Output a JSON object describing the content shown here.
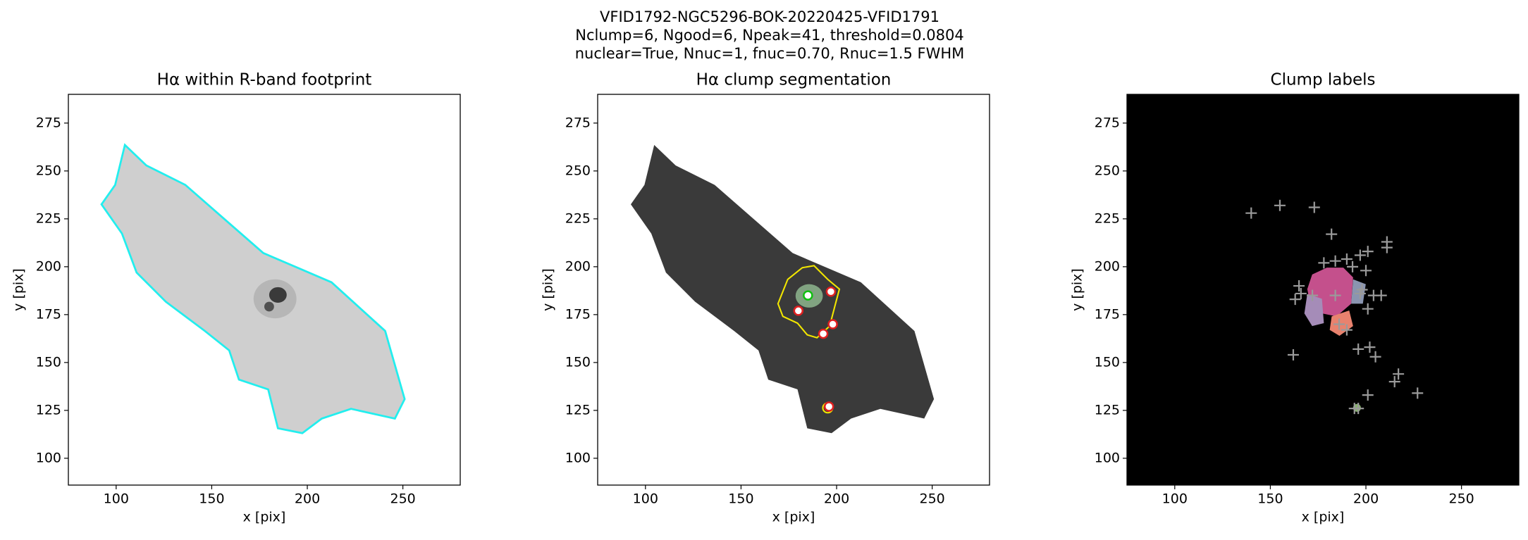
{
  "title_lines": [
    "VFID1792-NGC5296-BOK-20220425-VFID1791",
    "Nclump=6, Ngood=6, Npeak=41, threshold=0.0804",
    "nuclear=True, Nnuc=1, fnuc=0.70, Rnuc=1.5 FWHM"
  ],
  "chart_data": [
    {
      "type": "image",
      "title": "Hα within R-band footprint",
      "xlabel": "x [pix]",
      "ylabel": "y [pix]",
      "xlim": [
        75,
        280
      ],
      "ylim": [
        86,
        290
      ],
      "xticks": [
        100,
        150,
        200,
        250
      ],
      "yticks": [
        100,
        125,
        150,
        175,
        200,
        225,
        250,
        275
      ]
    },
    {
      "type": "image",
      "title": "Hα clump segmentation",
      "xlabel": "x [pix]",
      "ylabel": "y [pix]",
      "xlim": [
        75,
        280
      ],
      "ylim": [
        86,
        290
      ],
      "xticks": [
        100,
        150,
        200,
        250
      ],
      "yticks": [
        100,
        125,
        150,
        175,
        200,
        225,
        250,
        275
      ],
      "peaks": {
        "marker": "circle",
        "color": "#e02020",
        "x": [
          185,
          180,
          197,
          193,
          198,
          196
        ],
        "y": [
          185,
          177,
          187,
          165,
          170,
          127
        ]
      }
    },
    {
      "type": "image",
      "title": "Clump labels",
      "xlabel": "x [pix]",
      "ylabel": "y [pix]",
      "xlim": [
        75,
        280
      ],
      "ylim": [
        86,
        290
      ],
      "xticks": [
        100,
        150,
        200,
        250
      ],
      "yticks": [
        100,
        125,
        150,
        175,
        200,
        225,
        250,
        275
      ],
      "peaks": {
        "marker": "plus",
        "color": "#9a9a9a",
        "x": [
          140,
          155,
          173,
          182,
          211,
          211,
          201,
          197,
          190,
          178,
          184,
          193,
          200,
          165,
          166,
          163,
          172,
          184,
          198,
          197,
          204,
          208,
          201,
          186,
          190,
          162,
          196,
          202,
          205,
          217,
          215,
          227,
          201,
          194,
          196
        ],
        "y": [
          228,
          232,
          231,
          217,
          213,
          210,
          208,
          206,
          204,
          202,
          203,
          200,
          198,
          190,
          186,
          183,
          185,
          185,
          188,
          186,
          185,
          185,
          178,
          170,
          167,
          154,
          157,
          158,
          153,
          144,
          140,
          134,
          133,
          126,
          126
        ]
      }
    }
  ]
}
